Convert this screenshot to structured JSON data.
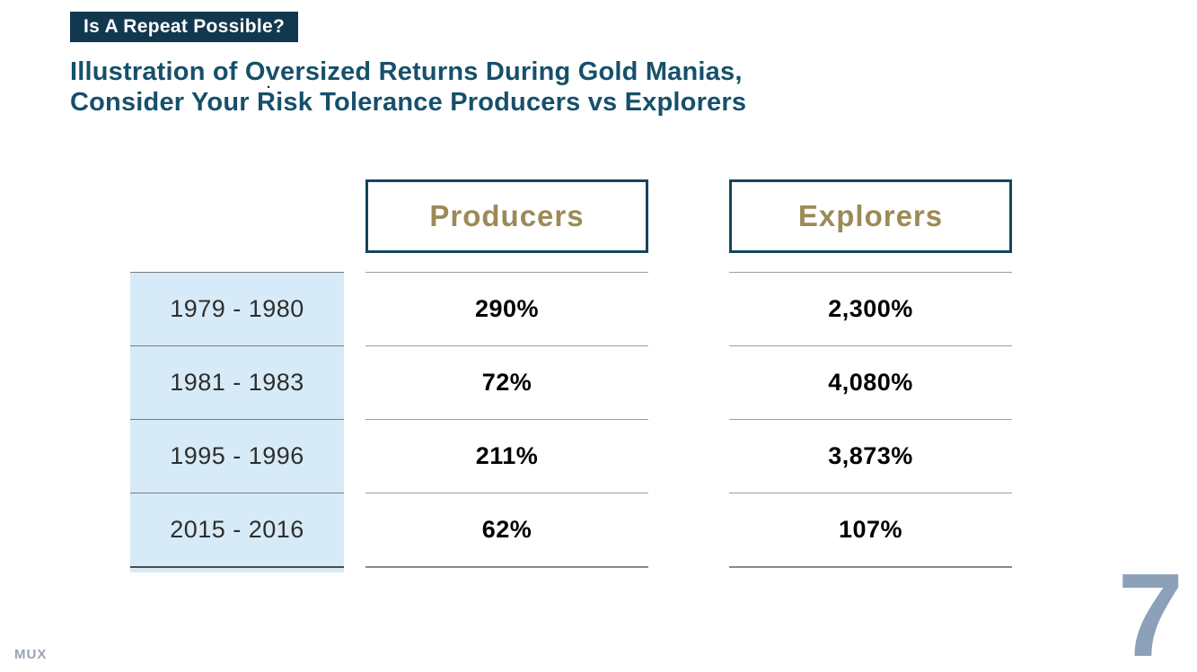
{
  "slide": {
    "kicker": "Is A Repeat Possible?",
    "title_line1": "Illustration of Oversized Returns During Gold Manias,",
    "title_line2": "Consider Your Risk Tolerance Producers vs Explorers",
    "stray_mark": ".",
    "logo": "MUX",
    "page_number": "7"
  },
  "table": {
    "row_labels": [
      "1979 - 1980",
      "1981 - 1983",
      "1995 - 1996",
      "2015 - 2016"
    ],
    "columns": [
      {
        "header": "Producers",
        "values": [
          "290%",
          "72%",
          "211%",
          "62%"
        ]
      },
      {
        "header": "Explorers",
        "values": [
          "2,300%",
          "4,080%",
          "3,873%",
          "107%"
        ]
      }
    ]
  },
  "chart_data": {
    "type": "table",
    "title": "Illustration of Oversized Returns During Gold Manias, Consider Your Risk Tolerance Producers vs Explorers",
    "categories": [
      "1979 - 1980",
      "1981 - 1983",
      "1995 - 1996",
      "2015 - 2016"
    ],
    "series": [
      {
        "name": "Producers",
        "values_pct": [
          290,
          72,
          211,
          62
        ]
      },
      {
        "name": "Explorers",
        "values_pct": [
          2300,
          4080,
          3873,
          107
        ]
      }
    ]
  },
  "colors": {
    "badge_bg": "#12384F",
    "title_text": "#16506B",
    "header_gold": "#9C8A57",
    "header_border": "#16455D",
    "year_cell_bg": "#D6EBF7",
    "page_number": "#8CA0B8",
    "logo": "#98A3B2"
  }
}
